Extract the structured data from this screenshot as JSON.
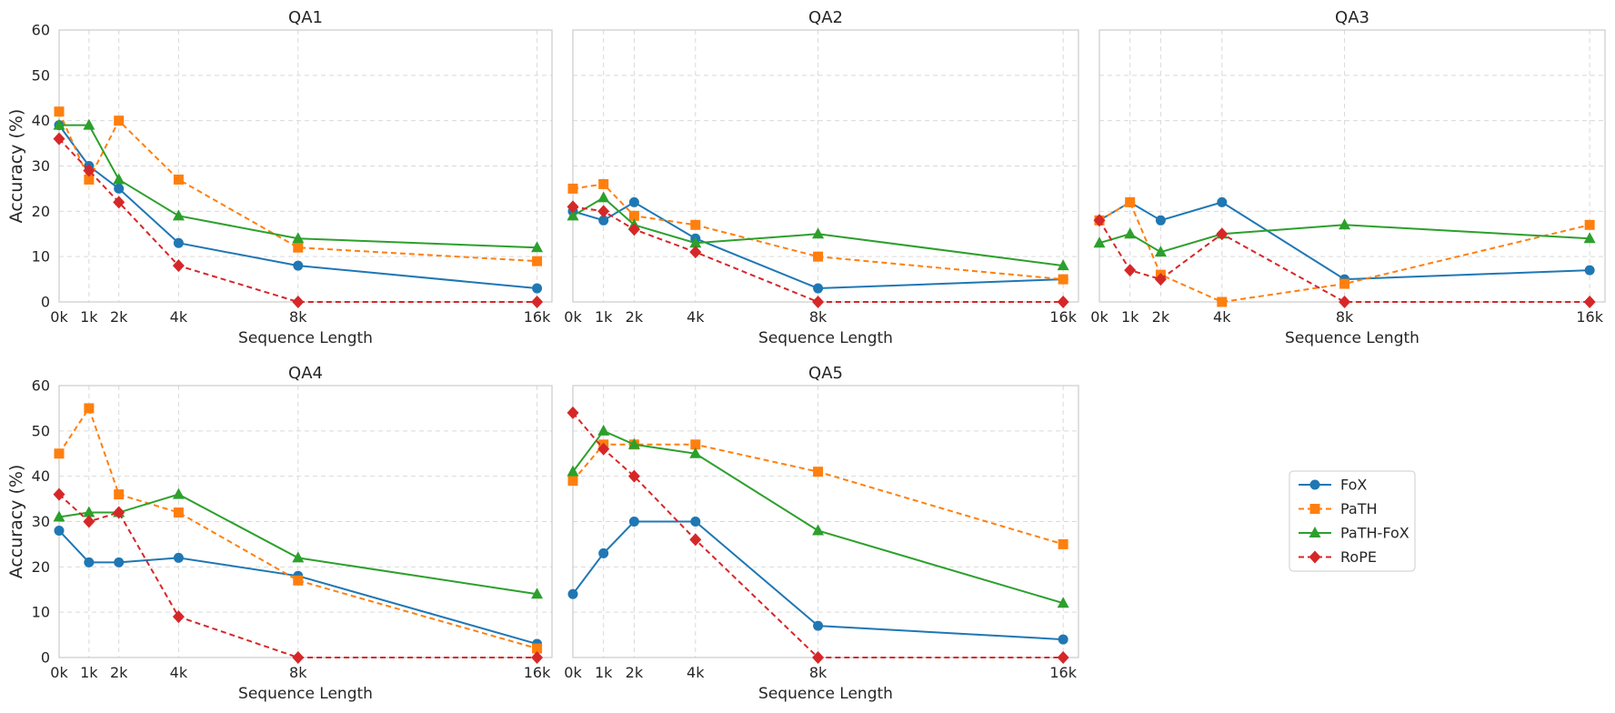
{
  "chart_data": {
    "type": "line",
    "ylabel": "Accuracy (%)",
    "xlabel": "Sequence Length",
    "x": [
      0,
      1,
      2,
      4,
      8,
      16
    ],
    "xticklabels": [
      "0k",
      "1k",
      "2k",
      "4k",
      "8k",
      "16k"
    ],
    "yticks": [
      0,
      10,
      20,
      30,
      40,
      50,
      60
    ],
    "ylim": [
      0,
      60
    ],
    "xlim": [
      0,
      16.5
    ],
    "grid": true,
    "legend_position": "center-right",
    "series_styles": [
      {
        "name": "FoX",
        "color": "#1f77b4",
        "marker": "circle",
        "dash": "solid"
      },
      {
        "name": "PaTH",
        "color": "#ff7f0e",
        "marker": "square",
        "dash": "dashed"
      },
      {
        "name": "PaTH-FoX",
        "color": "#2ca02c",
        "marker": "triangle",
        "dash": "solid"
      },
      {
        "name": "RoPE",
        "color": "#d62728",
        "marker": "diamond",
        "dash": "dashed"
      }
    ],
    "panels": [
      {
        "title": "QA1",
        "series": [
          {
            "name": "FoX",
            "values": [
              39,
              30,
              25,
              13,
              8,
              3
            ]
          },
          {
            "name": "PaTH",
            "values": [
              42,
              27,
              40,
              27,
              12,
              9
            ]
          },
          {
            "name": "PaTH-FoX",
            "values": [
              39,
              39,
              27,
              19,
              14,
              12
            ]
          },
          {
            "name": "RoPE",
            "values": [
              36,
              29,
              22,
              8,
              0,
              0
            ]
          }
        ]
      },
      {
        "title": "QA2",
        "series": [
          {
            "name": "FoX",
            "values": [
              20,
              18,
              22,
              14,
              3,
              5
            ]
          },
          {
            "name": "PaTH",
            "values": [
              25,
              26,
              19,
              17,
              10,
              5
            ]
          },
          {
            "name": "PaTH-FoX",
            "values": [
              19,
              23,
              17,
              13,
              15,
              8
            ]
          },
          {
            "name": "RoPE",
            "values": [
              21,
              20,
              16,
              11,
              0,
              0
            ]
          }
        ]
      },
      {
        "title": "QA3",
        "series": [
          {
            "name": "FoX",
            "values": [
              18,
              22,
              18,
              22,
              5,
              7
            ]
          },
          {
            "name": "PaTH",
            "values": [
              18,
              22,
              6,
              0,
              4,
              17
            ]
          },
          {
            "name": "PaTH-FoX",
            "values": [
              13,
              15,
              11,
              15,
              17,
              14
            ]
          },
          {
            "name": "RoPE",
            "values": [
              18,
              7,
              5,
              15,
              0,
              0
            ]
          }
        ]
      },
      {
        "title": "QA4",
        "series": [
          {
            "name": "FoX",
            "values": [
              28,
              21,
              21,
              22,
              18,
              3
            ]
          },
          {
            "name": "PaTH",
            "values": [
              45,
              55,
              36,
              32,
              17,
              2
            ]
          },
          {
            "name": "PaTH-FoX",
            "values": [
              31,
              32,
              32,
              36,
              22,
              14
            ]
          },
          {
            "name": "RoPE",
            "values": [
              36,
              30,
              32,
              9,
              0,
              0
            ]
          }
        ]
      },
      {
        "title": "QA5",
        "series": [
          {
            "name": "FoX",
            "values": [
              14,
              23,
              30,
              30,
              7,
              4
            ]
          },
          {
            "name": "PaTH",
            "values": [
              39,
              47,
              47,
              47,
              41,
              25
            ]
          },
          {
            "name": "PaTH-FoX",
            "values": [
              41,
              50,
              47,
              45,
              28,
              12
            ]
          },
          {
            "name": "RoPE",
            "values": [
              54,
              46,
              40,
              26,
              0,
              0
            ]
          }
        ]
      }
    ]
  }
}
